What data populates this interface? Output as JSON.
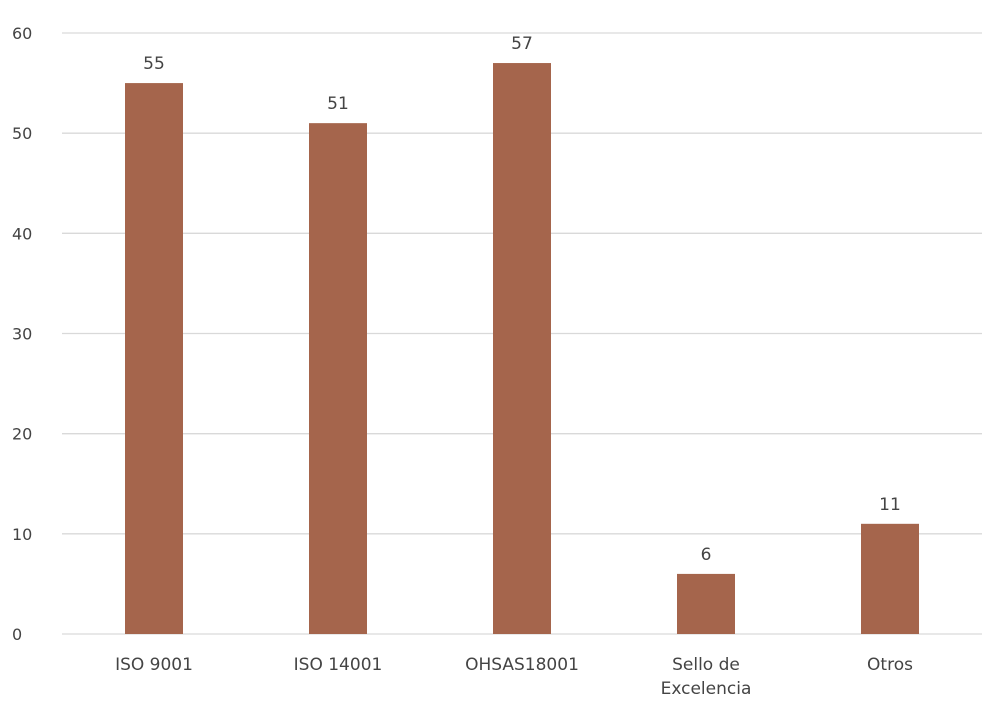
{
  "chart_data": {
    "type": "bar",
    "title": "",
    "xlabel": "",
    "ylabel": "",
    "categories": [
      [
        "ISO 9001"
      ],
      [
        "ISO 14001"
      ],
      [
        "OHSAS18001"
      ],
      [
        "Sello de",
        "Excelencia"
      ],
      [
        "Otros"
      ]
    ],
    "values": [
      55,
      51,
      57,
      6,
      11
    ],
    "data_labels": [
      "55",
      "51",
      "57",
      "6",
      "11"
    ],
    "ylim": [
      0,
      60
    ],
    "yticks": [
      0,
      10,
      20,
      30,
      40,
      50,
      60
    ],
    "grid": true,
    "legend": "none",
    "bar_color": "#A5654C",
    "grid_color": "#D9D9D9",
    "text_color": "#444444"
  }
}
